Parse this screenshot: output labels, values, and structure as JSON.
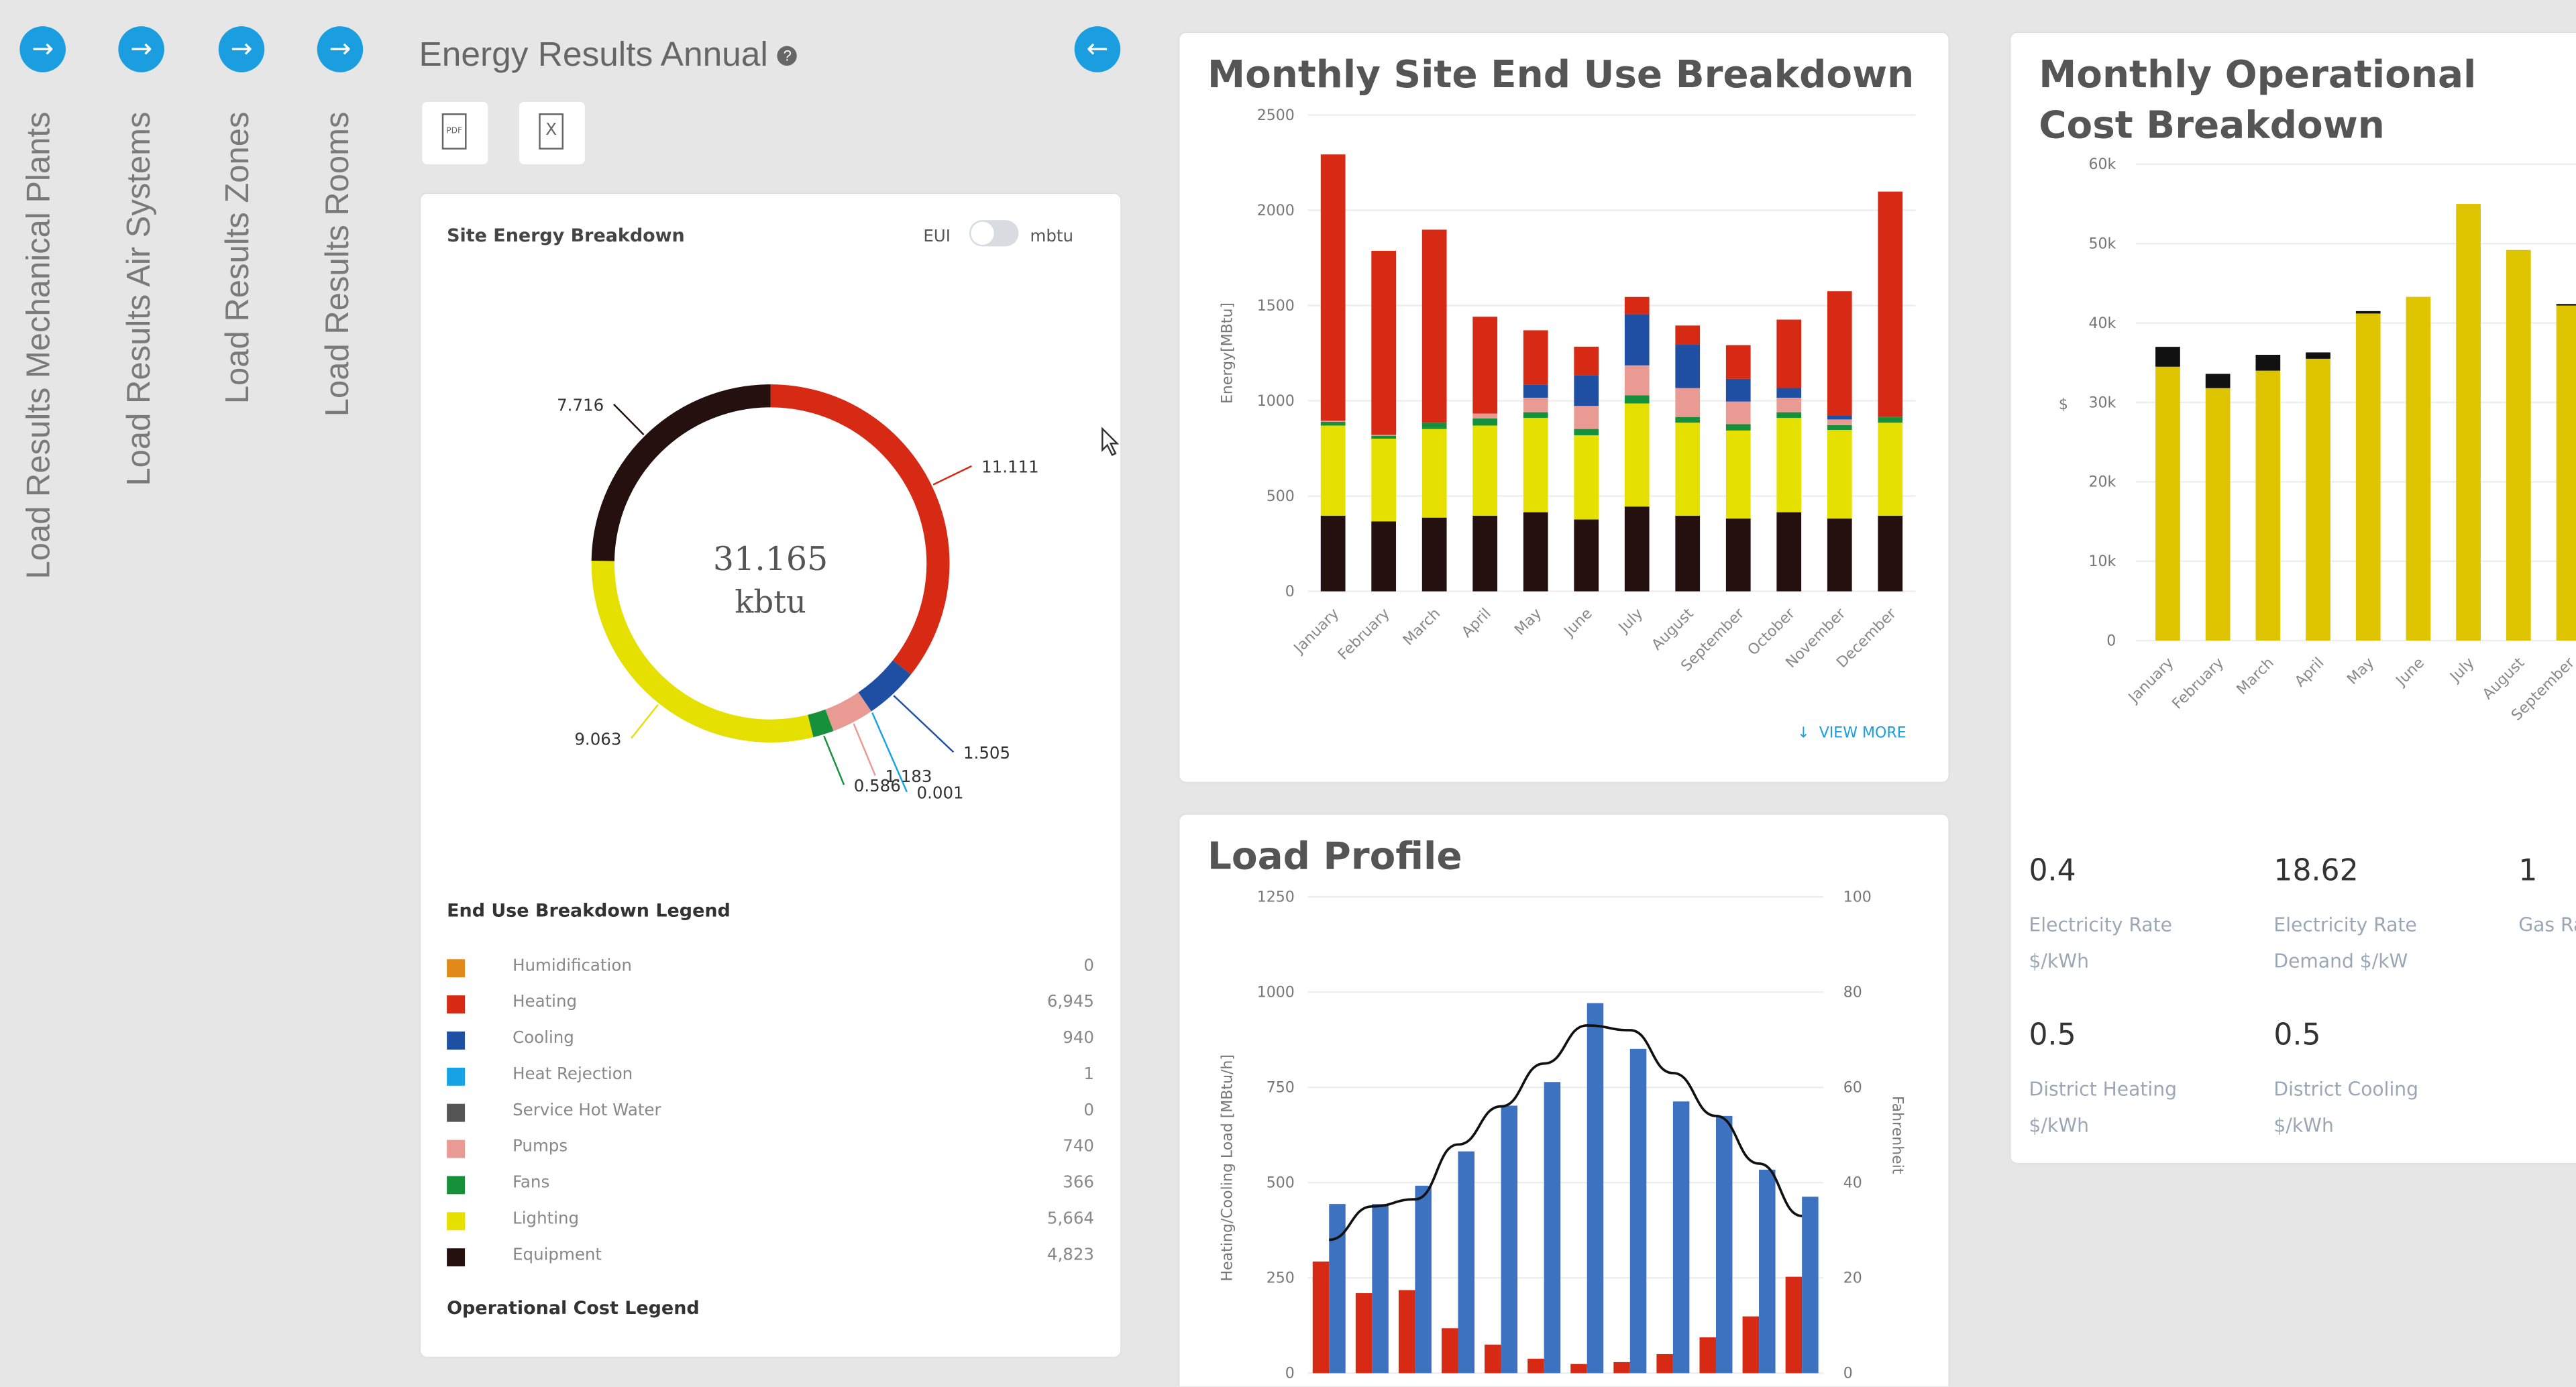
{
  "sidebar": {
    "items": [
      {
        "label": "Load Results Mechanical Plants",
        "icon": "arrow-right-icon"
      },
      {
        "label": "Load Results Air Systems",
        "icon": "arrow-right-icon"
      },
      {
        "label": "Load Results Zones",
        "icon": "arrow-right-icon"
      },
      {
        "label": "Load Results Rooms",
        "icon": "arrow-right-icon"
      }
    ]
  },
  "header": {
    "title": "Energy Results Annual",
    "help_icon": "?",
    "back_icon": "arrow-left-icon",
    "pdf_label": "PDF",
    "excel_label": "X"
  },
  "colors": {
    "accent": "#1a9ee0",
    "humidification": "#e08a1c",
    "heating": "#d62a14",
    "cooling": "#1f4fa3",
    "heat_rejection": "#17a2e6",
    "service_hot_water": "#555555",
    "pumps": "#e99a93",
    "fans": "#17903c",
    "lighting": "#e6e000",
    "equipment": "#24100f",
    "cost_electric": "#dfc400",
    "cost_gas": "#111111",
    "load_heating": "#d62a14",
    "load_cooling": "#3d72c0"
  },
  "site_energy": {
    "title": "Site Energy Breakdown",
    "toggle_left": "EUI",
    "toggle_right": "mbtu",
    "toggle_on": false,
    "total": "31.165",
    "unit": "kbtu",
    "segments": [
      {
        "key": "heating",
        "label": "11.111",
        "value": 11.111
      },
      {
        "key": "cooling",
        "label": "1.505",
        "value": 1.505
      },
      {
        "key": "heat_rejection",
        "label": "0.001",
        "value": 0.001
      },
      {
        "key": "pumps",
        "label": "1.183",
        "value": 1.183
      },
      {
        "key": "fans",
        "label": "0.586",
        "value": 0.586
      },
      {
        "key": "lighting",
        "label": "9.063",
        "value": 9.063
      },
      {
        "key": "equipment",
        "label": "7.716",
        "value": 7.716
      }
    ],
    "legend_title": "End Use Breakdown Legend",
    "legend": [
      {
        "key": "humidification",
        "label": "Humidification",
        "value": "0"
      },
      {
        "key": "heating",
        "label": "Heating",
        "value": "6,945"
      },
      {
        "key": "cooling",
        "label": "Cooling",
        "value": "940"
      },
      {
        "key": "heat_rejection",
        "label": "Heat Rejection",
        "value": "1"
      },
      {
        "key": "service_hot_water",
        "label": "Service Hot Water",
        "value": "0"
      },
      {
        "key": "pumps",
        "label": "Pumps",
        "value": "740"
      },
      {
        "key": "fans",
        "label": "Fans",
        "value": "366"
      },
      {
        "key": "lighting",
        "label": "Lighting",
        "value": "5,664"
      },
      {
        "key": "equipment",
        "label": "Equipment",
        "value": "4,823"
      }
    ],
    "cost_legend_title": "Operational Cost Legend"
  },
  "monthly_site": {
    "title": "Monthly Site End Use Breakdown",
    "view_more": "VIEW MORE"
  },
  "monthly_cost": {
    "title": "Monthly Operational Cost Breakdown",
    "stats": [
      {
        "value": "0.4",
        "label1": "Electricity Rate",
        "label2": "$/kWh"
      },
      {
        "value": "18.62",
        "label1": "Electricity Rate",
        "label2": "Demand $/kW"
      },
      {
        "value": "1",
        "label1": "Gas Ra",
        "label2": ""
      },
      {
        "value": "0.5",
        "label1": "District Heating",
        "label2": "$/kWh"
      },
      {
        "value": "0.5",
        "label1": "District Cooling",
        "label2": "$/kWh"
      }
    ]
  },
  "load_profile": {
    "title": "Load Profile"
  },
  "chart_data": [
    {
      "type": "pie",
      "title": "Site Energy Breakdown",
      "categories": [
        "Heating",
        "Cooling",
        "Heat Rejection",
        "Pumps",
        "Fans",
        "Lighting",
        "Equipment"
      ],
      "values": [
        11.111,
        1.505,
        0.001,
        1.183,
        0.586,
        9.063,
        7.716
      ],
      "total": 31.165
    },
    {
      "type": "bar",
      "stacked": true,
      "title": "Monthly Site End Use Breakdown",
      "ylabel": "Energy[MBtu]",
      "ylim": [
        0,
        2500
      ],
      "yticks": [
        0,
        500,
        1000,
        1500,
        2000,
        2500
      ],
      "grid": true,
      "categories": [
        "January",
        "February",
        "March",
        "April",
        "May",
        "June",
        "July",
        "August",
        "September",
        "October",
        "November",
        "December"
      ],
      "series": [
        {
          "key": "equipment",
          "values": [
            397,
            367,
            387,
            397,
            415,
            377,
            445,
            397,
            382,
            415,
            382,
            397
          ]
        },
        {
          "key": "lighting",
          "values": [
            473,
            434,
            465,
            473,
            495,
            442,
            541,
            488,
            462,
            495,
            465,
            488
          ]
        },
        {
          "key": "fans",
          "values": [
            20,
            15,
            33,
            37,
            30,
            33,
            43,
            30,
            33,
            30,
            25,
            30
          ]
        },
        {
          "key": "pumps",
          "values": [
            5,
            5,
            0,
            26,
            76,
            121,
            157,
            152,
            119,
            76,
            30,
            0
          ]
        },
        {
          "key": "cooling",
          "values": [
            0,
            0,
            0,
            0,
            68,
            162,
            268,
            227,
            119,
            51,
            21,
            0
          ]
        },
        {
          "key": "heating",
          "values": [
            1398,
            966,
            1013,
            508,
            286,
            149,
            91,
            101,
            177,
            359,
            652,
            1183
          ]
        }
      ]
    },
    {
      "type": "bar",
      "stacked": true,
      "title": "Monthly Operational Cost Breakdown",
      "ylabel": "$",
      "ylim": [
        0,
        60000
      ],
      "yticks": [
        "0",
        "10k",
        "20k",
        "30k",
        "40k",
        "50k",
        "60k"
      ],
      "grid": true,
      "categories": [
        "January",
        "February",
        "March",
        "April",
        "May",
        "June",
        "July",
        "August",
        "September"
      ],
      "series": [
        {
          "key": "cost_electric",
          "values": [
            34500,
            31800,
            34000,
            35500,
            41200,
            43300,
            55000,
            49200,
            42200
          ]
        },
        {
          "key": "cost_gas",
          "values": [
            2500,
            1800,
            2000,
            800,
            300,
            0,
            0,
            0,
            200
          ]
        }
      ]
    },
    {
      "type": "bar",
      "title": "Load Profile",
      "ylabel": "Heating/Cooling Load [MBtu/h]",
      "y2label": "Fahrenheit",
      "ylim": [
        0,
        1250
      ],
      "y2lim": [
        0,
        100
      ],
      "yticks": [
        0,
        250,
        500,
        750,
        1000,
        1250
      ],
      "y2ticks": [
        0,
        20,
        40,
        60,
        80,
        100
      ],
      "grid": true,
      "series": [
        {
          "key": "load_heating",
          "type": "bar",
          "values": [
            293,
            210,
            218,
            118,
            75,
            38,
            24,
            29,
            50,
            94,
            149,
            253
          ]
        },
        {
          "key": "load_cooling",
          "type": "bar",
          "values": [
            444,
            444,
            492,
            582,
            702,
            764,
            971,
            851,
            713,
            675,
            534,
            463
          ]
        },
        {
          "key": "temperature",
          "type": "line",
          "axis": "right",
          "values": [
            28,
            35,
            36.5,
            48,
            56,
            65,
            73,
            72,
            63,
            54,
            44,
            33
          ]
        }
      ]
    }
  ]
}
